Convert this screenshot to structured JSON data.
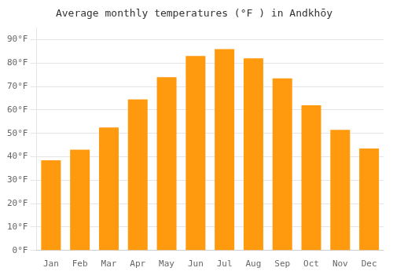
{
  "chart_data": {
    "type": "bar",
    "title": "Average monthly temperatures (°F ) in Andkhōy",
    "categories": [
      "Jan",
      "Feb",
      "Mar",
      "Apr",
      "May",
      "Jun",
      "Jul",
      "Aug",
      "Sep",
      "Oct",
      "Nov",
      "Dec"
    ],
    "values": [
      38.5,
      43.0,
      52.5,
      64.5,
      74.0,
      83.0,
      86.0,
      82.0,
      73.5,
      62.0,
      51.5,
      43.5
    ],
    "color": "#ff990d",
    "ylim": [
      0,
      95
    ],
    "yticks": [
      {
        "value": 0,
        "label": "0°F"
      },
      {
        "value": 10,
        "label": "10°F"
      },
      {
        "value": 20,
        "label": "20°F"
      },
      {
        "value": 30,
        "label": "30°F"
      },
      {
        "value": 40,
        "label": "40°F"
      },
      {
        "value": 50,
        "label": "50°F"
      },
      {
        "value": 60,
        "label": "60°F"
      },
      {
        "value": 70,
        "label": "70°F"
      },
      {
        "value": 80,
        "label": "80°F"
      },
      {
        "value": 90,
        "label": "90°F"
      }
    ],
    "grid": true
  }
}
